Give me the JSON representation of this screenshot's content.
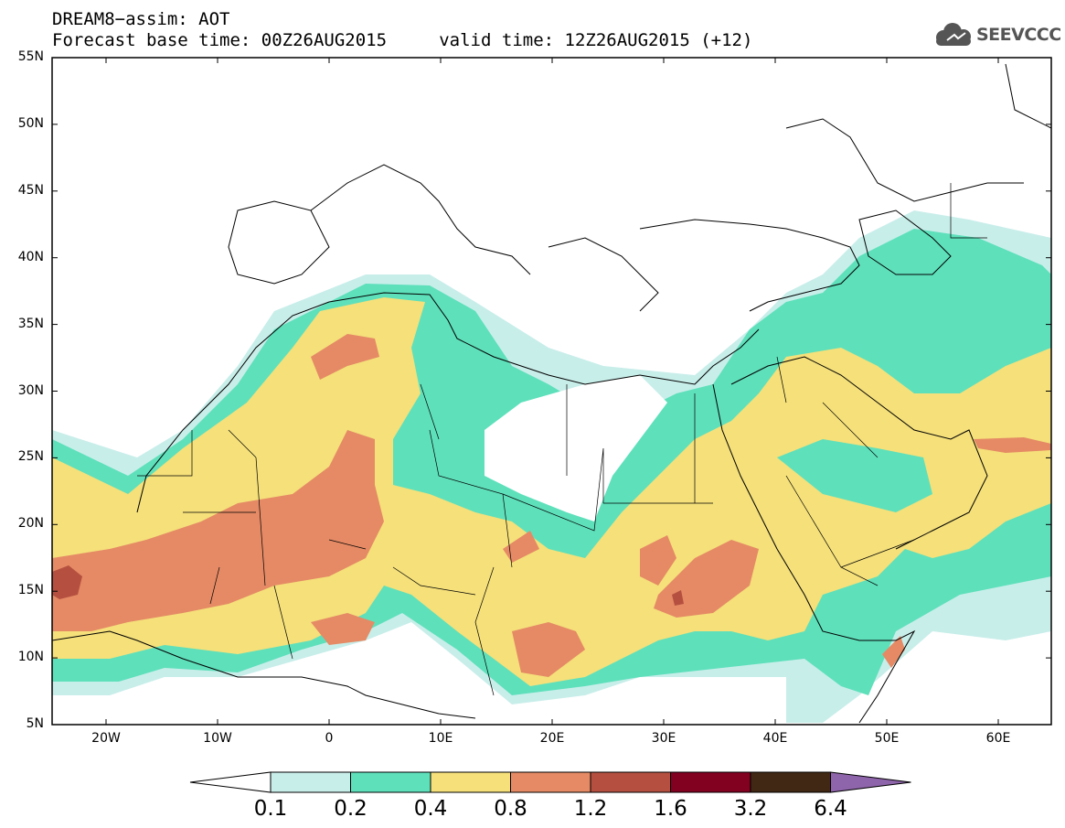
{
  "title": {
    "line1": "DREAM8−assim: AOT",
    "line2": "Forecast base time: 00Z26AUG2015     valid time: 12Z26AUG2015 (+12)"
  },
  "logo": {
    "text": "SEEVCCC"
  },
  "axes": {
    "lat_labels": [
      "55N",
      "50N",
      "45N",
      "40N",
      "35N",
      "30N",
      "25N",
      "20N",
      "15N",
      "10N",
      "5N"
    ],
    "lon_labels": [
      "20W",
      "10W",
      "0",
      "10E",
      "20E",
      "30E",
      "40E",
      "50E",
      "60E"
    ]
  },
  "legend": {
    "thresholds": [
      "0.1",
      "0.2",
      "0.4",
      "0.8",
      "1.2",
      "1.6",
      "3.2",
      "6.4"
    ],
    "colors": [
      "#c8eeea",
      "#5ee0bb",
      "#f5e07a",
      "#e58a65",
      "#b55040",
      "#820020",
      "#402814",
      "#8e64aa"
    ],
    "under_color": "#ffffff"
  }
}
